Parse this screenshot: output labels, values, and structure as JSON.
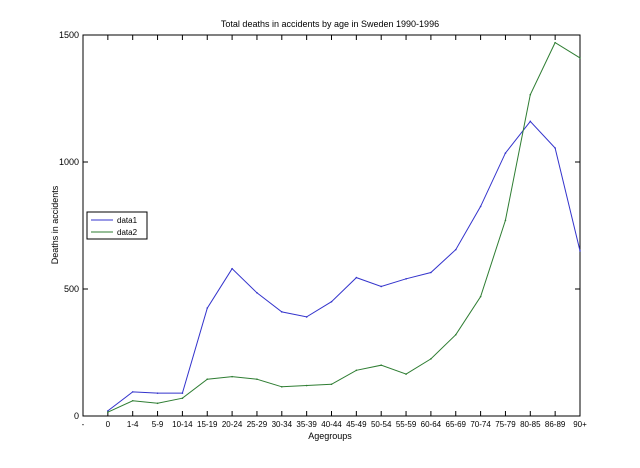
{
  "chart_data": {
    "type": "line",
    "title": "Total deaths in accidents by age in Sweden 1990-1996",
    "xlabel": "Agegroups",
    "ylabel": "Deaths in accidents",
    "categories": [
      "-",
      "0",
      "1-4",
      "5-9",
      "10-14",
      "15-19",
      "20-24",
      "25-29",
      "30-34",
      "35-39",
      "40-44",
      "45-49",
      "50-54",
      "55-59",
      "60-64",
      "65-69",
      "70-74",
      "75-79",
      "80-85",
      "86-89",
      "90+"
    ],
    "ylim": [
      0,
      1500
    ],
    "yticks": [
      0,
      500,
      1000,
      1500
    ],
    "grid": false,
    "legend_position": "middle-left",
    "series": [
      {
        "name": "data1",
        "color": "#3333cc",
        "values": [
          null,
          20,
          95,
          90,
          90,
          425,
          580,
          485,
          410,
          390,
          450,
          545,
          510,
          540,
          565,
          655,
          825,
          1035,
          1160,
          1055,
          650
        ]
      },
      {
        "name": "data2",
        "color": "#2e7d32",
        "values": [
          null,
          15,
          60,
          50,
          70,
          145,
          155,
          145,
          115,
          120,
          125,
          180,
          200,
          165,
          225,
          320,
          470,
          770,
          1265,
          1470,
          1410
        ]
      }
    ]
  }
}
